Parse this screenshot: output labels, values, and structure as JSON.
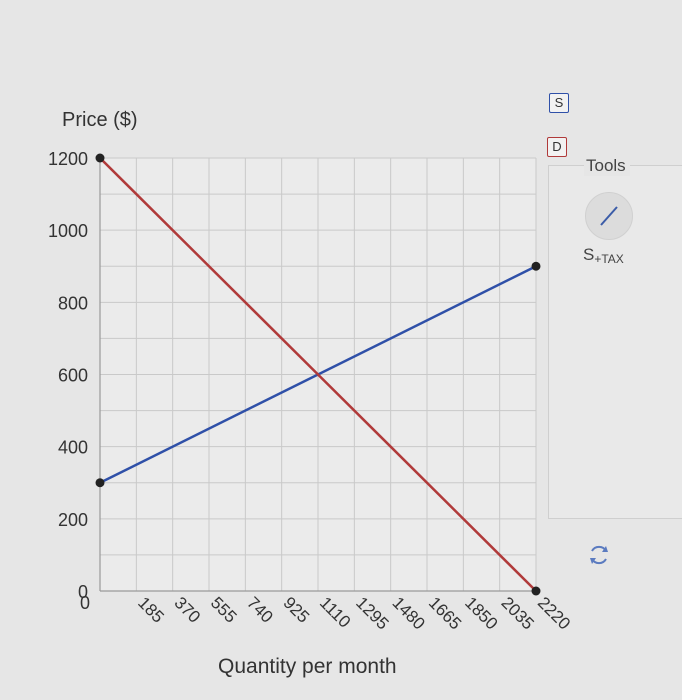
{
  "chart_data": {
    "type": "line",
    "ylabel": "Price ($)",
    "xlabel": "Quantity per month",
    "x_ticks": [
      0,
      185,
      370,
      555,
      740,
      925,
      1110,
      1295,
      1480,
      1665,
      1850,
      2035,
      2220
    ],
    "y_ticks": [
      0,
      200,
      400,
      600,
      800,
      1000,
      1200
    ],
    "xlim": [
      0,
      2220
    ],
    "ylim": [
      0,
      1200
    ],
    "grid": true,
    "series": [
      {
        "name": "S",
        "color": "#2f50a8",
        "points": [
          [
            0,
            300
          ],
          [
            2220,
            900
          ]
        ]
      },
      {
        "name": "D",
        "color": "#b03a3a",
        "points": [
          [
            0,
            1200
          ],
          [
            2220,
            0
          ]
        ]
      }
    ]
  },
  "tools": {
    "title": "Tools",
    "tax_tool_label": "S",
    "tax_tool_sub": "+TAX",
    "tax_tool_icon": "line-tool-icon",
    "reset_icon": "reset-icon"
  },
  "legend": [
    {
      "label": "S",
      "color": "#2f50a8"
    },
    {
      "label": "D",
      "color": "#b03a3a"
    }
  ]
}
